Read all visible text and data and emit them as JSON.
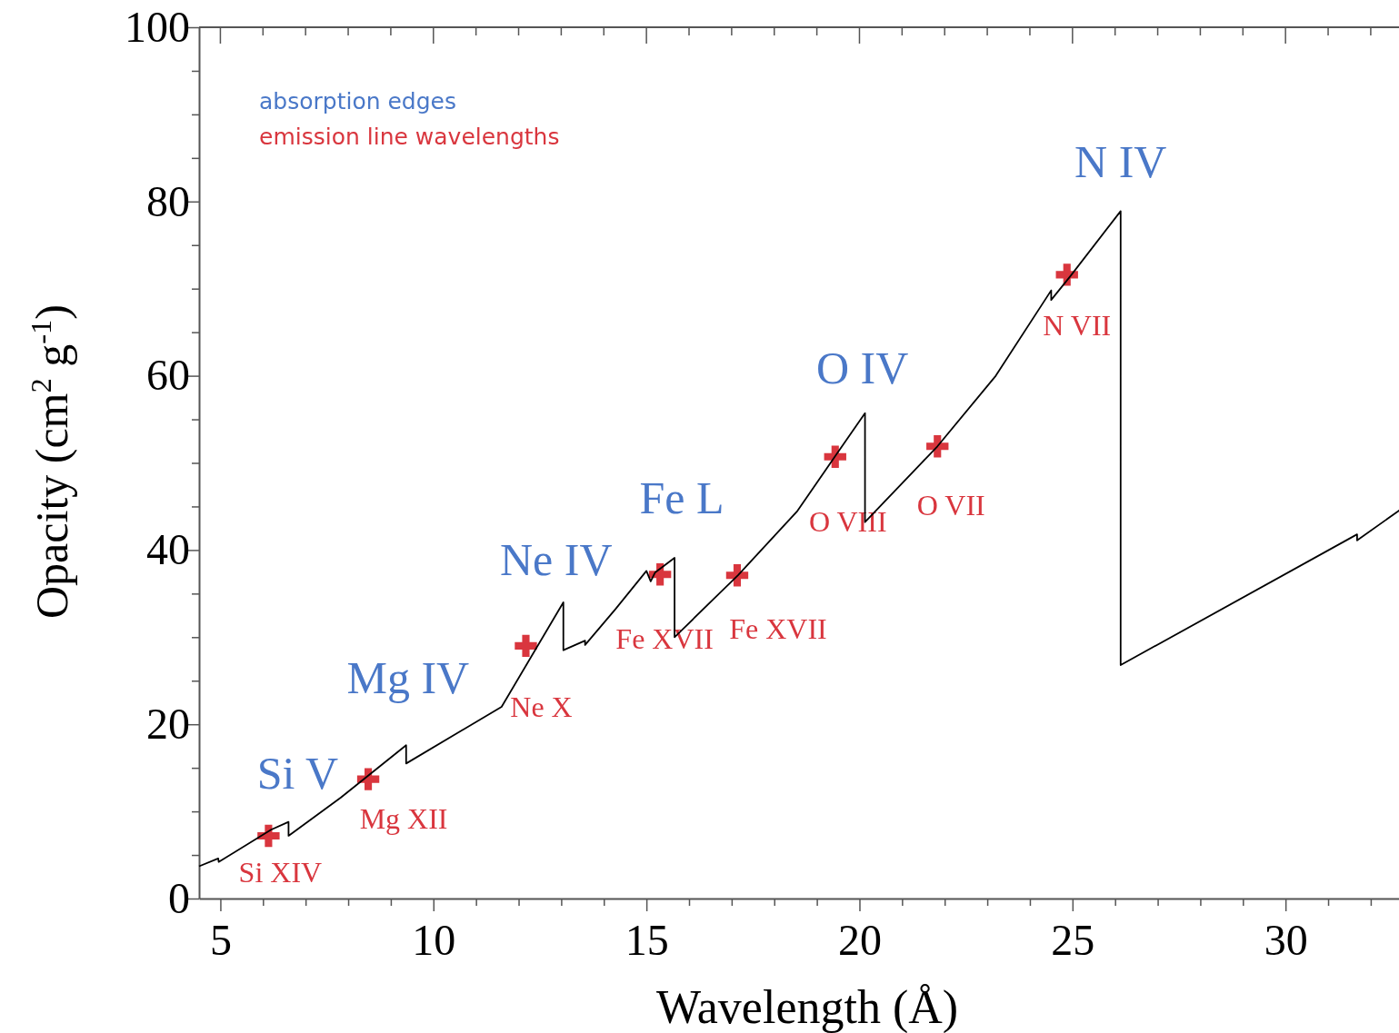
{
  "chart_data": {
    "type": "line",
    "xlabel": "Wavelength (Å)",
    "ylabel": "Opacity (cm$^{2}$ g$^{-1}$)",
    "xlim": [
      4.5,
      32.77
    ],
    "ylim": [
      0,
      100
    ],
    "xticks": [
      5,
      {
        "value": 6,
        "label": null
      },
      {
        "value": 7,
        "label": null
      },
      {
        "value": 8,
        "label": null
      },
      {
        "value": 9,
        "label": null
      },
      10,
      {
        "value": 11,
        "label": null
      },
      {
        "value": 12,
        "label": null
      },
      {
        "value": 13,
        "label": null
      },
      {
        "value": 14,
        "label": null
      },
      15,
      {
        "value": 16,
        "label": null
      },
      {
        "value": 17,
        "label": null
      },
      {
        "value": 18,
        "label": null
      },
      {
        "value": 19,
        "label": null
      },
      20,
      {
        "value": 21,
        "label": null
      },
      {
        "value": 22,
        "label": null
      },
      {
        "value": 23,
        "label": null
      },
      {
        "value": 24,
        "label": null
      },
      25,
      {
        "value": 26,
        "label": null
      },
      {
        "value": 27,
        "label": null
      },
      {
        "value": 28,
        "label": null
      },
      {
        "value": 29,
        "label": null
      },
      30,
      {
        "value": 31,
        "label": null
      },
      {
        "value": 32,
        "label": null
      }
    ],
    "yticks": [
      0,
      {
        "value": 5,
        "label": null
      },
      {
        "value": 10,
        "label": null
      },
      {
        "value": 15,
        "label": null
      },
      20,
      {
        "value": 25,
        "label": null
      },
      {
        "value": 30,
        "label": null
      },
      {
        "value": 35,
        "label": null
      },
      40,
      {
        "value": 45,
        "label": null
      },
      {
        "value": 50,
        "label": null
      },
      {
        "value": 55,
        "label": null
      },
      60,
      {
        "value": 65,
        "label": null
      },
      {
        "value": 70,
        "label": null
      },
      {
        "value": 75,
        "label": null
      },
      80,
      {
        "value": 85,
        "label": null
      },
      {
        "value": 90,
        "label": null
      },
      {
        "value": 95,
        "label": null
      },
      100
    ],
    "annotations": [
      "absorption edges",
      {
        "text": "Si V",
        "x": 6.6,
        "y": 8.8
      },
      {
        "text": "Mg IV",
        "x": 9.36,
        "y": 17.6
      },
      {
        "text": "Ne IV",
        "x": 13.05,
        "y": 34.0
      },
      {
        "text": "Fe L",
        "x": 15.66,
        "y": 39.1
      },
      {
        "text": "O IV",
        "x": 20.13,
        "y": 55.7
      },
      {
        "text": "N IV",
        "x": 26.13,
        "y": 78.9
      }
    ],
    "series": [
      {
        "color": "#000000",
        "x": [
          4.5,
          4.95,
          4.96,
          6.19,
          6.6,
          6.6,
          7.83,
          9.36,
          9.36,
          11.6,
          13.05,
          13.05,
          13.56,
          13.56,
          14.27,
          15.0,
          15.1,
          15.2,
          15.66,
          15.66,
          17.15,
          18.53,
          19.42,
          20.13,
          20.13,
          21.83,
          23.2,
          24.5,
          24.5,
          24.96,
          26.13,
          26.13,
          31.68,
          31.68,
          32.77
        ],
        "values": [
          3.7,
          4.6,
          4.2,
          7.9,
          8.8,
          7.2,
          11.6,
          17.6,
          15.5,
          22.0,
          34.0,
          28.5,
          29.6,
          29.1,
          33.2,
          37.6,
          36.4,
          37.4,
          39.1,
          30.0,
          37.1,
          44.4,
          50.7,
          55.7,
          43.2,
          51.9,
          60.0,
          69.8,
          68.7,
          71.5,
          78.9,
          26.8,
          41.8,
          41.1,
          44.9
        ]
      },
      {
        "type": "scatter",
        "name": "emission line wavelengths",
        "color": "#d9363e",
        "marker": "cross",
        "x": [
          6.13,
          8.47,
          12.17,
          15.32,
          17.13,
          19.43,
          21.83,
          24.87
        ],
        "values": [
          7.2,
          13.7,
          29.0,
          37.2,
          37.1,
          50.7,
          51.9,
          71.6
        ],
        "value_labels": [
          "Si XIV",
          "Mg XII",
          "Ne X",
          "Fe XVII",
          "Fe XVII",
          "O VIII",
          "O VII",
          "N VII"
        ]
      }
    ]
  }
}
